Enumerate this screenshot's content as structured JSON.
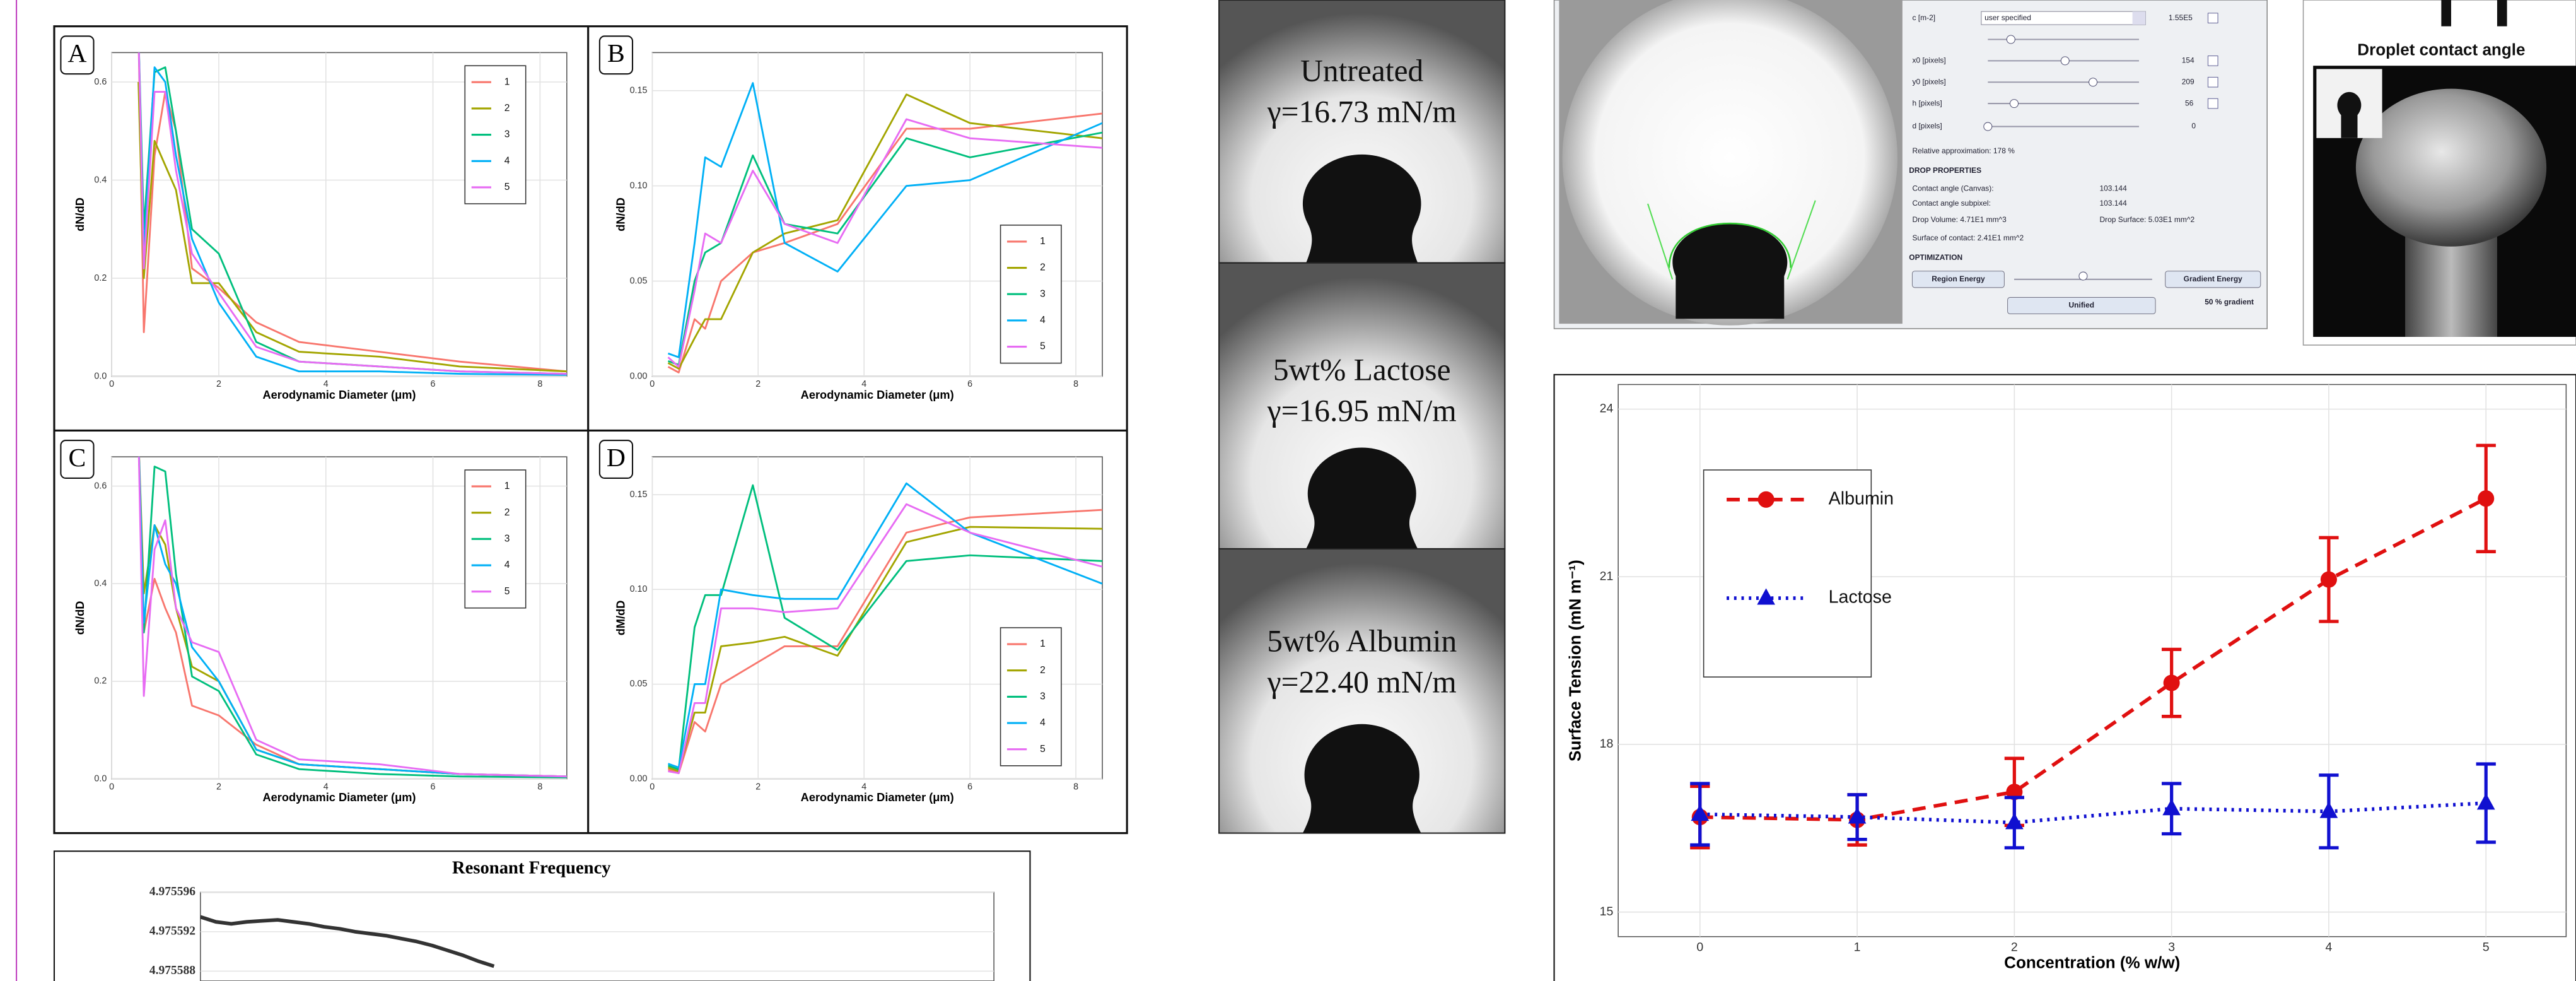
{
  "chart_data": [
    {
      "type": "line",
      "panel": "A",
      "xlabel": "Aerodynamic Diameter (μm)",
      "ylabel": "dN/dD",
      "x": [
        0.5,
        0.6,
        0.8,
        1.0,
        1.2,
        1.5,
        2.0,
        2.7,
        3.5,
        5.0,
        6.5,
        8.5
      ],
      "xlim": [
        0,
        8.5
      ],
      "xticks": [
        0,
        2,
        4,
        6,
        8
      ],
      "ylim": [
        0,
        0.66
      ],
      "yticks": [
        {
          "value": 0,
          "label": "0.0"
        },
        0.2,
        0.4,
        0.6
      ],
      "grid": true,
      "legend": "upper right",
      "series": [
        {
          "name": "1",
          "color": "#F8766D",
          "values": [
            0.7,
            0.09,
            0.45,
            0.58,
            0.5,
            0.22,
            0.18,
            0.11,
            0.07,
            0.05,
            0.03,
            0.01
          ]
        },
        {
          "name": "2",
          "color": "#A3A500",
          "values": [
            0.6,
            0.2,
            0.48,
            0.43,
            0.38,
            0.19,
            0.19,
            0.09,
            0.05,
            0.04,
            0.02,
            0.01
          ]
        },
        {
          "name": "3",
          "color": "#00BF7D",
          "values": [
            0.7,
            0.3,
            0.62,
            0.63,
            0.5,
            0.3,
            0.25,
            0.07,
            0.03,
            0.02,
            0.01,
            0.005
          ]
        },
        {
          "name": "4",
          "color": "#00B0F6",
          "values": [
            0.7,
            0.25,
            0.63,
            0.6,
            0.45,
            0.28,
            0.15,
            0.04,
            0.01,
            0.01,
            0.005,
            0.003
          ]
        },
        {
          "name": "5",
          "color": "#E76BF3",
          "values": [
            0.7,
            0.22,
            0.58,
            0.58,
            0.42,
            0.25,
            0.17,
            0.06,
            0.03,
            0.02,
            0.01,
            0.005
          ]
        }
      ]
    },
    {
      "type": "line",
      "panel": "B",
      "xlabel": "Aerodynamic Diameter (μm)",
      "ylabel": "dN/dD",
      "x": [
        0.3,
        0.5,
        0.8,
        1.0,
        1.3,
        1.9,
        2.5,
        3.5,
        4.8,
        6.0,
        8.5
      ],
      "xlim": [
        0,
        8.5
      ],
      "xticks": [
        0,
        2,
        4,
        6,
        8
      ],
      "ylim": [
        0,
        0.17
      ],
      "yticks": [
        {
          "value": 0,
          "label": "0.00"
        },
        0.05,
        {
          "value": 0.1,
          "label": "0.10"
        },
        0.15
      ],
      "grid": true,
      "legend": "lower right",
      "series": [
        {
          "name": "1",
          "color": "#F8766D",
          "values": [
            0.005,
            0.002,
            0.03,
            0.025,
            0.05,
            0.065,
            0.07,
            0.08,
            0.13,
            0.13,
            0.138
          ]
        },
        {
          "name": "2",
          "color": "#A3A500",
          "values": [
            0.007,
            0.004,
            0.02,
            0.03,
            0.03,
            0.065,
            0.075,
            0.082,
            0.148,
            0.133,
            0.125
          ]
        },
        {
          "name": "3",
          "color": "#00BF7D",
          "values": [
            0.008,
            0.006,
            0.05,
            0.065,
            0.07,
            0.116,
            0.08,
            0.075,
            0.125,
            0.115,
            0.128
          ]
        },
        {
          "name": "4",
          "color": "#00B0F6",
          "values": [
            0.012,
            0.01,
            0.07,
            0.115,
            0.11,
            0.154,
            0.07,
            0.055,
            0.1,
            0.103,
            0.133
          ]
        },
        {
          "name": "5",
          "color": "#E76BF3",
          "values": [
            0.01,
            0.005,
            0.045,
            0.075,
            0.07,
            0.108,
            0.08,
            0.07,
            0.135,
            0.125,
            0.12
          ]
        }
      ]
    },
    {
      "type": "line",
      "panel": "C",
      "xlabel": "Aerodynamic Diameter (μm)",
      "ylabel": "dN/dD",
      "x": [
        0.5,
        0.6,
        0.8,
        1.0,
        1.2,
        1.5,
        2.0,
        2.7,
        3.5,
        5.0,
        6.5,
        8.5
      ],
      "xlim": [
        0,
        8.5
      ],
      "xticks": [
        0,
        2,
        4,
        6,
        8
      ],
      "ylim": [
        0,
        0.66
      ],
      "yticks": [
        {
          "value": 0,
          "label": "0.0"
        },
        0.2,
        0.4,
        0.6
      ],
      "grid": true,
      "legend": "upper right",
      "series": [
        {
          "name": "1",
          "color": "#F8766D",
          "values": [
            0.7,
            0.3,
            0.41,
            0.35,
            0.3,
            0.15,
            0.13,
            0.07,
            0.03,
            0.02,
            0.01,
            0.005
          ]
        },
        {
          "name": "2",
          "color": "#A3A500",
          "values": [
            0.7,
            0.38,
            0.52,
            0.48,
            0.35,
            0.23,
            0.2,
            0.06,
            0.03,
            0.02,
            0.01,
            0.005
          ]
        },
        {
          "name": "3",
          "color": "#00BF7D",
          "values": [
            0.7,
            0.3,
            0.64,
            0.63,
            0.42,
            0.21,
            0.18,
            0.05,
            0.02,
            0.01,
            0.005,
            0.003
          ]
        },
        {
          "name": "4",
          "color": "#00B0F6",
          "values": [
            0.7,
            0.32,
            0.52,
            0.44,
            0.4,
            0.27,
            0.2,
            0.06,
            0.03,
            0.02,
            0.01,
            0.005
          ]
        },
        {
          "name": "5",
          "color": "#E76BF3",
          "values": [
            0.7,
            0.17,
            0.47,
            0.53,
            0.35,
            0.28,
            0.26,
            0.08,
            0.04,
            0.03,
            0.01,
            0.005
          ]
        }
      ]
    },
    {
      "type": "line",
      "panel": "D",
      "xlabel": "Aerodynamic Diameter (μm)",
      "ylabel": "dM/dD",
      "x": [
        0.3,
        0.5,
        0.8,
        1.0,
        1.3,
        1.9,
        2.5,
        3.5,
        4.8,
        6.0,
        8.5
      ],
      "xlim": [
        0,
        8.5
      ],
      "xticks": [
        0,
        2,
        4,
        6,
        8
      ],
      "ylim": [
        0,
        0.17
      ],
      "yticks": [
        {
          "value": 0,
          "label": "0.00"
        },
        0.05,
        {
          "value": 0.1,
          "label": "0.10"
        },
        0.15
      ],
      "grid": true,
      "legend": "lower right",
      "series": [
        {
          "name": "1",
          "color": "#F8766D",
          "values": [
            0.005,
            0.003,
            0.03,
            0.025,
            0.05,
            0.06,
            0.07,
            0.07,
            0.13,
            0.138,
            0.142
          ]
        },
        {
          "name": "2",
          "color": "#A3A500",
          "values": [
            0.006,
            0.004,
            0.035,
            0.035,
            0.07,
            0.072,
            0.075,
            0.065,
            0.125,
            0.133,
            0.132
          ]
        },
        {
          "name": "3",
          "color": "#00BF7D",
          "values": [
            0.007,
            0.005,
            0.08,
            0.097,
            0.097,
            0.155,
            0.085,
            0.068,
            0.115,
            0.118,
            0.115
          ]
        },
        {
          "name": "4",
          "color": "#00B0F6",
          "values": [
            0.008,
            0.006,
            0.05,
            0.05,
            0.1,
            0.097,
            0.095,
            0.095,
            0.156,
            0.13,
            0.103
          ]
        },
        {
          "name": "5",
          "color": "#E76BF3",
          "values": [
            0.004,
            0.003,
            0.04,
            0.04,
            0.09,
            0.09,
            0.088,
            0.09,
            0.145,
            0.13,
            0.112
          ]
        }
      ]
    },
    {
      "type": "line",
      "title": "Resonant Frequency",
      "ylim": [
        4.975587,
        4.975596
      ],
      "yticks": [
        4.975596,
        4.975592,
        4.975588
      ],
      "grid": true,
      "series": [
        {
          "color": "#333333",
          "values": [
            4.9755935,
            4.975593,
            4.9755928,
            4.975593,
            4.9755931,
            4.9755932,
            4.975593,
            4.9755928,
            4.9755925,
            4.9755923,
            4.975592,
            4.9755918,
            4.9755916,
            4.9755913,
            4.975591,
            4.9755906,
            4.9755901,
            4.9755896,
            4.975589,
            4.9755885
          ]
        }
      ]
    },
    {
      "type": "line",
      "xlabel": "Concentration (% w/w)",
      "ylabel": "Surface Tension (mN m⁻¹)",
      "x": [
        0,
        1,
        2,
        3,
        4,
        5
      ],
      "xlim": [
        -0.52,
        5.51
      ],
      "xticks": [
        0,
        1,
        2,
        3,
        4,
        5
      ],
      "ylim": [
        14.56,
        24.44
      ],
      "yticks": [
        15,
        18,
        21,
        24
      ],
      "grid": true,
      "legend": "upper left",
      "series": [
        {
          "name": "Albumin",
          "color": "#e01010",
          "dash": "dashed",
          "marker": "circle",
          "values": [
            16.7,
            16.65,
            17.15,
            19.1,
            20.95,
            22.4
          ],
          "errors": [
            0.55,
            0.45,
            0.6,
            0.6,
            0.75,
            0.95
          ]
        },
        {
          "name": "Lactose",
          "color": "#1010d0",
          "dash": "dotted",
          "marker": "triangle",
          "values": [
            16.75,
            16.7,
            16.6,
            16.85,
            16.8,
            16.95
          ],
          "errors": [
            0.55,
            0.4,
            0.45,
            0.45,
            0.65,
            0.7
          ]
        }
      ]
    }
  ],
  "droplets": [
    {
      "label": "Untreated",
      "tension": "γ=16.73 mN/m"
    },
    {
      "label": "5wt% Lactose",
      "tension": "γ=16.95 mN/m"
    },
    {
      "label": "5wt% Albumin",
      "tension": "γ=22.40 mN/m"
    }
  ],
  "software": {
    "fields": [
      {
        "label": "c [m-2]",
        "value": "1.55E5"
      },
      {
        "label": "x0 [pixels]",
        "value": "154"
      },
      {
        "label": "y0 [pixels]",
        "value": "209"
      },
      {
        "label": "h [pixels]",
        "value": "56"
      },
      {
        "label": "d [pixels]",
        "value": "0"
      }
    ],
    "dropdown": "user specified",
    "approximation": "Relative approximation: 178 %",
    "section1": "DROP PROPERTIES",
    "props": [
      "Contact angle (Canvas):",
      "103.144",
      "Contact angle subpixel:",
      "103.144",
      "Drop Volume: 4.71E1 mm^3",
      "Drop Surface: 5.03E1 mm^2",
      "Surface of contact: 2.41E1 mm^2"
    ],
    "section2": "OPTIMIZATION",
    "buttons": [
      "Region Energy",
      "Gradient Energy",
      "Unified"
    ],
    "gradient": "50 % gradient"
  },
  "contact_angle": {
    "title": "Droplet contact angle"
  }
}
